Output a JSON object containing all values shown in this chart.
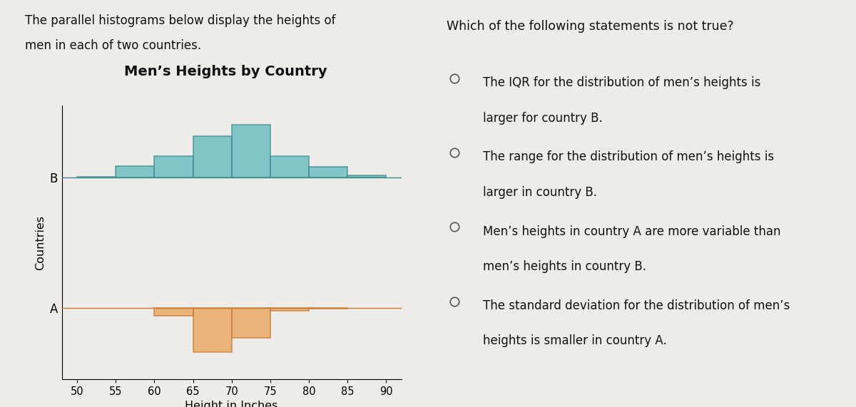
{
  "title": "Men’s Heights by Country",
  "xlabel": "Height in Inches",
  "ylabel": "Countries",
  "bg_color": "#eeece8",
  "left_text_line1": "The parallel histograms below display the heights of",
  "left_text_line2": "men in each of two countries.",
  "right_question": "Which of the following statements is not true?",
  "right_options": [
    [
      "The IQR for the distribution of men’s heights is",
      "larger for country B."
    ],
    [
      "The range for the distribution of men’s heights is",
      "larger in country B."
    ],
    [
      "Men’s heights in country A are more variable than",
      "men’s heights in country B."
    ],
    [
      "The standard deviation for the distribution of men’s",
      "heights is smaller in country A."
    ]
  ],
  "bin_edges": [
    50,
    55,
    60,
    65,
    70,
    75,
    80,
    85,
    90
  ],
  "country_B_heights": [
    0.05,
    1.0,
    1.8,
    3.5,
    4.5,
    1.8,
    0.9,
    0.15
  ],
  "country_A_heights": [
    0,
    0,
    0.7,
    3.8,
    2.6,
    0.25,
    0.08,
    0
  ],
  "color_B": "#5db8bc",
  "color_A": "#e8a055",
  "color_B_edge": "#3a8a8e",
  "color_A_edge": "#c87830",
  "xticks": [
    50,
    55,
    60,
    65,
    70,
    75,
    80,
    85,
    90
  ],
  "B_baseline": 1.0,
  "A_baseline": 0.0,
  "scale": 0.09,
  "ylim_min": -0.55,
  "ylim_max": 1.55,
  "xlim_min": 48,
  "xlim_max": 92
}
